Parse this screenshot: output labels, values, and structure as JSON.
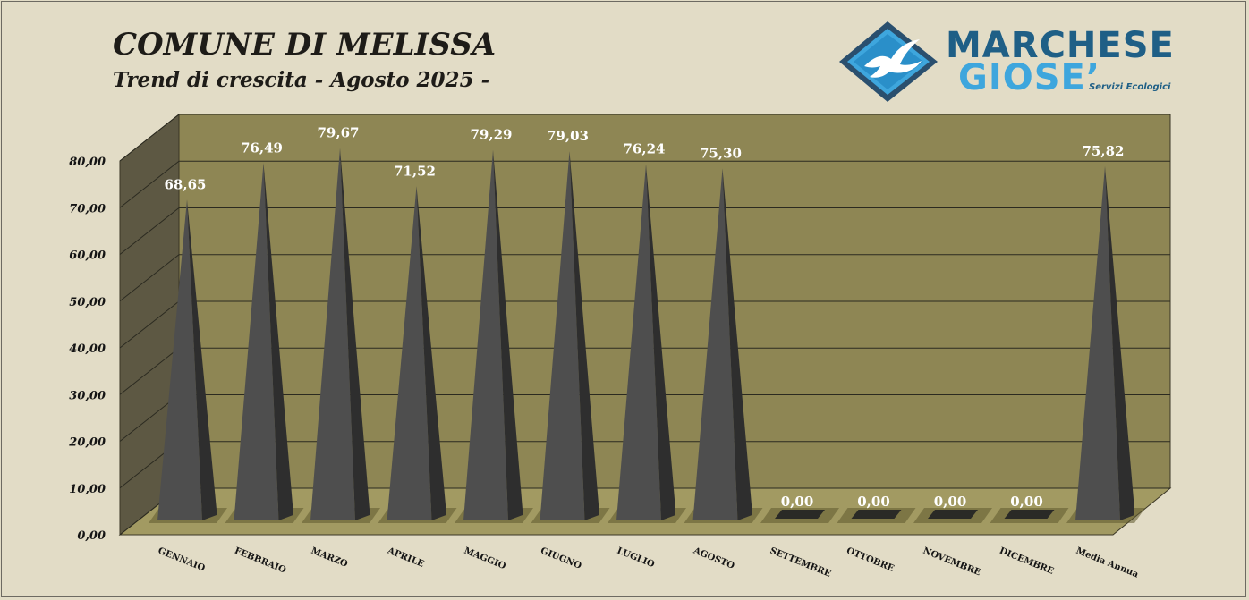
{
  "header": {
    "title": "COMUNE DI MELISSA",
    "subtitle": "Trend di crescita - Agosto 2025 -"
  },
  "logo": {
    "line1": "MARCHESE",
    "line2": "GIOSE’",
    "tagline": "Servizi Ecologici",
    "colors": {
      "dark": "#1f5f86",
      "light": "#3ea6dd"
    },
    "icon": "seagull-diamond-icon"
  },
  "chart_data": {
    "type": "bar",
    "style": "3d-pyramid",
    "categories": [
      "GENNAIO",
      "FEBBRAIO",
      "MARZO",
      "APRILE",
      "MAGGIO",
      "GIUGNO",
      "LUGLIO",
      "AGOSTO",
      "SETTEMBRE",
      "OTTOBRE",
      "NOVEMBRE",
      "DICEMBRE",
      "Media Annua"
    ],
    "values": [
      68.65,
      76.49,
      79.67,
      71.52,
      79.29,
      79.03,
      76.24,
      75.3,
      0.0,
      0.0,
      0.0,
      0.0,
      75.82
    ],
    "value_labels": [
      "68,65",
      "76,49",
      "79,67",
      "71,52",
      "79,29",
      "79,03",
      "76,24",
      "75,30",
      "0,00",
      "0,00",
      "0,00",
      "0,00",
      "75,82"
    ],
    "y_ticks": [
      "0,00",
      "10,00",
      "20,00",
      "30,00",
      "40,00",
      "50,00",
      "60,00",
      "70,00",
      "80,00"
    ],
    "ylim": [
      0,
      80
    ],
    "grid": true,
    "legend": "none",
    "colors": {
      "background": "#e2dcc6",
      "wall": "#8e8654",
      "side_wall": "#5d5843",
      "floor": "#a29a62",
      "bar": "#4e4e4e",
      "label": "#ffffff"
    }
  }
}
